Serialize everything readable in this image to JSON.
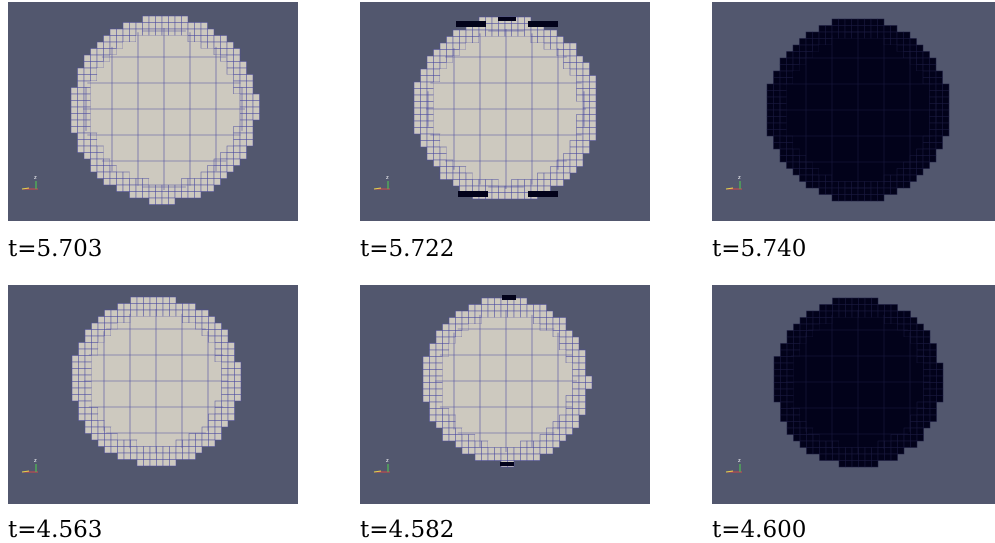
{
  "figure": {
    "panels": [
      {
        "caption": "t=5.703",
        "fill": "light",
        "edge_notches": "none"
      },
      {
        "caption": "t=5.722",
        "fill": "light",
        "edge_notches": "top-bottom"
      },
      {
        "caption": "t=5.740",
        "fill": "dark",
        "edge_notches": "none"
      },
      {
        "caption": "t=4.563",
        "fill": "light",
        "edge_notches": "none"
      },
      {
        "caption": "t=4.582",
        "fill": "light",
        "edge_notches": "top-bottom-small"
      },
      {
        "caption": "t=4.600",
        "fill": "dark",
        "edge_notches": "none"
      }
    ]
  },
  "colors": {
    "background": "#52576e",
    "light_fill": "#cdc9bf",
    "dark_fill": "#02021a",
    "grid_line_light": "#4f4fa0",
    "grid_line_dark": "#1b1b40",
    "axis_x": "#d14848",
    "axis_y": "#e3d44d",
    "axis_z": "#4fd04f"
  },
  "axes_triad": {
    "vertical_label": "z"
  }
}
